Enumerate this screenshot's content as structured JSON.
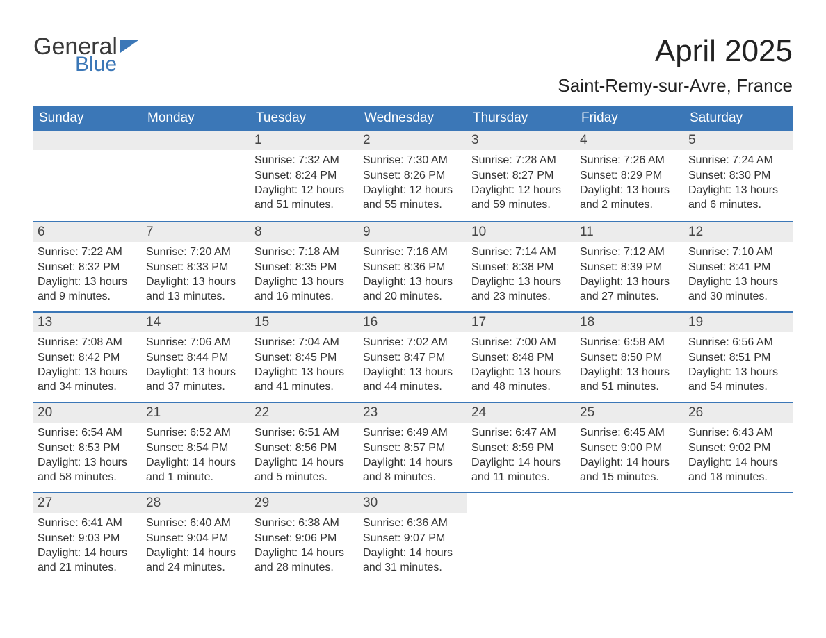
{
  "logo": {
    "general": "General",
    "blue": "Blue",
    "icon_color": "#3b77b7"
  },
  "title": "April 2025",
  "subtitle": "Saint-Remy-sur-Avre, France",
  "colors": {
    "header_bg": "#3b77b7",
    "header_text": "#ffffff",
    "daynum_bg": "#ececec",
    "row_border": "#3b77b7",
    "body_text": "#333333",
    "page_bg": "#ffffff"
  },
  "fonts": {
    "title_size_pt": 33,
    "subtitle_size_pt": 20,
    "weekday_size_pt": 14,
    "daynum_size_pt": 14,
    "body_size_pt": 12
  },
  "weekdays": [
    "Sunday",
    "Monday",
    "Tuesday",
    "Wednesday",
    "Thursday",
    "Friday",
    "Saturday"
  ],
  "weeks": [
    [
      {
        "day": null
      },
      {
        "day": null
      },
      {
        "day": "1",
        "sunrise": "Sunrise: 7:32 AM",
        "sunset": "Sunset: 8:24 PM",
        "daylight": "Daylight: 12 hours and 51 minutes."
      },
      {
        "day": "2",
        "sunrise": "Sunrise: 7:30 AM",
        "sunset": "Sunset: 8:26 PM",
        "daylight": "Daylight: 12 hours and 55 minutes."
      },
      {
        "day": "3",
        "sunrise": "Sunrise: 7:28 AM",
        "sunset": "Sunset: 8:27 PM",
        "daylight": "Daylight: 12 hours and 59 minutes."
      },
      {
        "day": "4",
        "sunrise": "Sunrise: 7:26 AM",
        "sunset": "Sunset: 8:29 PM",
        "daylight": "Daylight: 13 hours and 2 minutes."
      },
      {
        "day": "5",
        "sunrise": "Sunrise: 7:24 AM",
        "sunset": "Sunset: 8:30 PM",
        "daylight": "Daylight: 13 hours and 6 minutes."
      }
    ],
    [
      {
        "day": "6",
        "sunrise": "Sunrise: 7:22 AM",
        "sunset": "Sunset: 8:32 PM",
        "daylight": "Daylight: 13 hours and 9 minutes."
      },
      {
        "day": "7",
        "sunrise": "Sunrise: 7:20 AM",
        "sunset": "Sunset: 8:33 PM",
        "daylight": "Daylight: 13 hours and 13 minutes."
      },
      {
        "day": "8",
        "sunrise": "Sunrise: 7:18 AM",
        "sunset": "Sunset: 8:35 PM",
        "daylight": "Daylight: 13 hours and 16 minutes."
      },
      {
        "day": "9",
        "sunrise": "Sunrise: 7:16 AM",
        "sunset": "Sunset: 8:36 PM",
        "daylight": "Daylight: 13 hours and 20 minutes."
      },
      {
        "day": "10",
        "sunrise": "Sunrise: 7:14 AM",
        "sunset": "Sunset: 8:38 PM",
        "daylight": "Daylight: 13 hours and 23 minutes."
      },
      {
        "day": "11",
        "sunrise": "Sunrise: 7:12 AM",
        "sunset": "Sunset: 8:39 PM",
        "daylight": "Daylight: 13 hours and 27 minutes."
      },
      {
        "day": "12",
        "sunrise": "Sunrise: 7:10 AM",
        "sunset": "Sunset: 8:41 PM",
        "daylight": "Daylight: 13 hours and 30 minutes."
      }
    ],
    [
      {
        "day": "13",
        "sunrise": "Sunrise: 7:08 AM",
        "sunset": "Sunset: 8:42 PM",
        "daylight": "Daylight: 13 hours and 34 minutes."
      },
      {
        "day": "14",
        "sunrise": "Sunrise: 7:06 AM",
        "sunset": "Sunset: 8:44 PM",
        "daylight": "Daylight: 13 hours and 37 minutes."
      },
      {
        "day": "15",
        "sunrise": "Sunrise: 7:04 AM",
        "sunset": "Sunset: 8:45 PM",
        "daylight": "Daylight: 13 hours and 41 minutes."
      },
      {
        "day": "16",
        "sunrise": "Sunrise: 7:02 AM",
        "sunset": "Sunset: 8:47 PM",
        "daylight": "Daylight: 13 hours and 44 minutes."
      },
      {
        "day": "17",
        "sunrise": "Sunrise: 7:00 AM",
        "sunset": "Sunset: 8:48 PM",
        "daylight": "Daylight: 13 hours and 48 minutes."
      },
      {
        "day": "18",
        "sunrise": "Sunrise: 6:58 AM",
        "sunset": "Sunset: 8:50 PM",
        "daylight": "Daylight: 13 hours and 51 minutes."
      },
      {
        "day": "19",
        "sunrise": "Sunrise: 6:56 AM",
        "sunset": "Sunset: 8:51 PM",
        "daylight": "Daylight: 13 hours and 54 minutes."
      }
    ],
    [
      {
        "day": "20",
        "sunrise": "Sunrise: 6:54 AM",
        "sunset": "Sunset: 8:53 PM",
        "daylight": "Daylight: 13 hours and 58 minutes."
      },
      {
        "day": "21",
        "sunrise": "Sunrise: 6:52 AM",
        "sunset": "Sunset: 8:54 PM",
        "daylight": "Daylight: 14 hours and 1 minute."
      },
      {
        "day": "22",
        "sunrise": "Sunrise: 6:51 AM",
        "sunset": "Sunset: 8:56 PM",
        "daylight": "Daylight: 14 hours and 5 minutes."
      },
      {
        "day": "23",
        "sunrise": "Sunrise: 6:49 AM",
        "sunset": "Sunset: 8:57 PM",
        "daylight": "Daylight: 14 hours and 8 minutes."
      },
      {
        "day": "24",
        "sunrise": "Sunrise: 6:47 AM",
        "sunset": "Sunset: 8:59 PM",
        "daylight": "Daylight: 14 hours and 11 minutes."
      },
      {
        "day": "25",
        "sunrise": "Sunrise: 6:45 AM",
        "sunset": "Sunset: 9:00 PM",
        "daylight": "Daylight: 14 hours and 15 minutes."
      },
      {
        "day": "26",
        "sunrise": "Sunrise: 6:43 AM",
        "sunset": "Sunset: 9:02 PM",
        "daylight": "Daylight: 14 hours and 18 minutes."
      }
    ],
    [
      {
        "day": "27",
        "sunrise": "Sunrise: 6:41 AM",
        "sunset": "Sunset: 9:03 PM",
        "daylight": "Daylight: 14 hours and 21 minutes."
      },
      {
        "day": "28",
        "sunrise": "Sunrise: 6:40 AM",
        "sunset": "Sunset: 9:04 PM",
        "daylight": "Daylight: 14 hours and 24 minutes."
      },
      {
        "day": "29",
        "sunrise": "Sunrise: 6:38 AM",
        "sunset": "Sunset: 9:06 PM",
        "daylight": "Daylight: 14 hours and 28 minutes."
      },
      {
        "day": "30",
        "sunrise": "Sunrise: 6:36 AM",
        "sunset": "Sunset: 9:07 PM",
        "daylight": "Daylight: 14 hours and 31 minutes."
      },
      {
        "day": null
      },
      {
        "day": null
      },
      {
        "day": null
      }
    ]
  ]
}
